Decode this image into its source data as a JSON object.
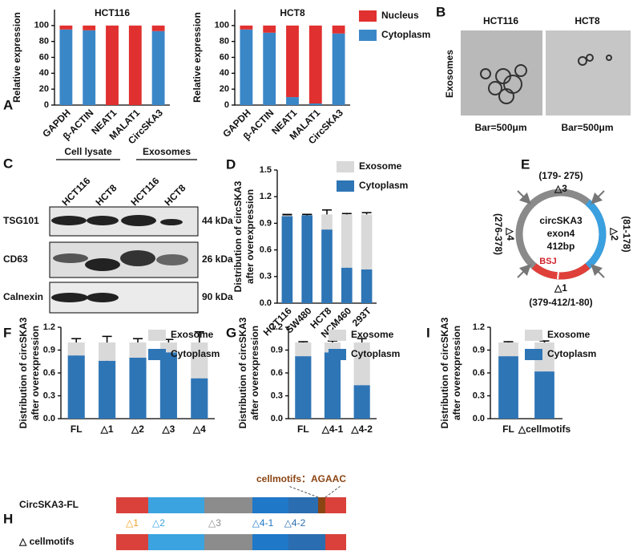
{
  "chart_data": [
    {
      "type": "bar",
      "stacked": true,
      "panel_label": "A",
      "title": "HCT116",
      "ylabel": "Relative expression",
      "categories": [
        "GAPDH",
        "β-ACTIN",
        "NEAT1",
        "MALAT1",
        "CircSKA3"
      ],
      "series": [
        {
          "name": "Cytoplasm",
          "color": "#3a87c8",
          "values": [
            95,
            94,
            0,
            0,
            93
          ]
        },
        {
          "name": "Nucleus",
          "color": "#e0302f",
          "values": [
            5,
            6,
            100,
            100,
            7
          ]
        }
      ],
      "ylim": [
        0,
        120
      ],
      "yticks": [
        0,
        20,
        40,
        60,
        80,
        100
      ]
    },
    {
      "type": "bar",
      "stacked": true,
      "title": "HCT8",
      "ylabel": "Relative expression",
      "categories": [
        "GAPDH",
        "β-ACTIN",
        "NEAT1",
        "MALAT1",
        "CircSKA3"
      ],
      "series": [
        {
          "name": "Cytoplasm",
          "color": "#3a87c8",
          "values": [
            95,
            91,
            10,
            2,
            90
          ]
        },
        {
          "name": "Nucleus",
          "color": "#e0302f",
          "values": [
            5,
            9,
            90,
            98,
            10
          ]
        }
      ],
      "ylim": [
        0,
        120
      ],
      "yticks": [
        0,
        20,
        40,
        60,
        80,
        100
      ],
      "legend": "right"
    },
    {
      "type": "bar",
      "stacked": true,
      "panel_label": "D",
      "ylabel": [
        "Distribution of circSKA3",
        "after overexpression"
      ],
      "categories": [
        "HCT116",
        "SW480",
        "HCT8",
        "NCM460",
        "293T"
      ],
      "series": [
        {
          "name": "Cytoplasm",
          "color": "#2e75b6",
          "values": [
            0.98,
            0.99,
            0.83,
            0.4,
            0.38
          ],
          "errors": [
            0.01,
            0.01,
            0.04,
            0.01,
            0.02
          ]
        },
        {
          "name": "Exosome",
          "color": "#d9d9d9",
          "values": [
            0.01,
            0.0,
            0.17,
            0.6,
            0.62
          ],
          "errors": [
            0.01,
            0.01,
            0.05,
            0.01,
            0.02
          ]
        }
      ],
      "ylim": [
        0,
        1.5
      ],
      "yticks": [
        {
          "value": 0,
          "label": "0.0"
        },
        0.3,
        0.6,
        0.9,
        1.2,
        1.5
      ],
      "legend": "upper right"
    },
    {
      "type": "bar",
      "stacked": true,
      "panel_label": "F",
      "ylabel": [
        "Distribution of circSKA3",
        "after overexpression"
      ],
      "categories": [
        "FL",
        "△1",
        "△2",
        "△3",
        "△4"
      ],
      "series": [
        {
          "name": "Cytoplasm",
          "color": "#2e75b6",
          "values": [
            0.83,
            0.76,
            0.8,
            0.87,
            0.53
          ],
          "errors": [
            0.04,
            0.08,
            0.06,
            0.04,
            0.14
          ]
        },
        {
          "name": "Exosome",
          "color": "#d9d9d9",
          "values": [
            0.17,
            0.24,
            0.2,
            0.13,
            0.47
          ],
          "errors": [
            0.05,
            0.08,
            0.05,
            0.04,
            0.14
          ]
        }
      ],
      "ylim": [
        0,
        1.2
      ],
      "yticks": [
        {
          "value": 0,
          "label": "0.0"
        },
        0.3,
        0.6,
        0.9,
        1.2
      ],
      "legend": "upper right"
    },
    {
      "type": "bar",
      "stacked": true,
      "panel_label": "G",
      "ylabel": [
        "Distribution of circSKA3",
        "after overexpression"
      ],
      "categories": [
        "FL",
        "△4-1",
        "△4-2"
      ],
      "series": [
        {
          "name": "Cytoplasm",
          "color": "#2e75b6",
          "values": [
            0.82,
            0.87,
            0.44
          ],
          "errors": [
            0.01,
            0.02,
            0.05
          ]
        },
        {
          "name": "Exosome",
          "color": "#d9d9d9",
          "values": [
            0.18,
            0.13,
            0.56
          ],
          "errors": [
            0.01,
            0.02,
            0.05
          ]
        }
      ],
      "ylim": [
        0,
        1.2
      ],
      "yticks": [
        {
          "value": 0,
          "label": "0.0"
        },
        0.3,
        0.6,
        0.9,
        1.2
      ],
      "legend": "upper right"
    },
    {
      "type": "bar",
      "stacked": true,
      "panel_label": "I",
      "ylabel": [
        "Distribution of circSKA3",
        "after overexpression"
      ],
      "categories": [
        "FL",
        "△cellmotifs"
      ],
      "series": [
        {
          "name": "Cytoplasm",
          "color": "#2e75b6",
          "values": [
            0.82,
            0.62
          ],
          "errors": [
            0.01,
            0.02
          ]
        },
        {
          "name": "Exosome",
          "color": "#d9d9d9",
          "values": [
            0.18,
            0.38
          ],
          "errors": [
            0.01,
            0.02
          ]
        }
      ],
      "ylim": [
        0,
        1.2
      ],
      "yticks": [
        {
          "value": 0,
          "label": "0.0"
        },
        0.3,
        0.6,
        0.9,
        1.2
      ],
      "legend": "upper right"
    }
  ],
  "panels": {
    "B": {
      "label": "B",
      "titles": [
        "HCT116",
        "HCT8"
      ],
      "row_label": "Exosomes",
      "scale_bars": [
        "Bar=500μm",
        "Bar=500μm"
      ]
    },
    "C": {
      "label": "C",
      "groups": [
        "Cell lysate",
        "Exosomes"
      ],
      "lanes": [
        "HCT116",
        "HCT8",
        "HCT116",
        "HCT8"
      ],
      "rows": [
        {
          "name": "TSG101",
          "size": "44 kDa"
        },
        {
          "name": "CD63",
          "size": "26 kDa"
        },
        {
          "name": "Calnexin",
          "size": "90 kDa"
        }
      ]
    },
    "E": {
      "label": "E",
      "center": [
        "circSKA3",
        "exon4",
        "412bp"
      ],
      "bsj": "BSJ",
      "segments": [
        {
          "name": "△1",
          "range": "(379-412/1-80)"
        },
        {
          "name": "△2",
          "range": "(81-178)"
        },
        {
          "name": "△3",
          "range": "(179- 275)"
        },
        {
          "name": "△4",
          "range": "(276-378)"
        }
      ]
    },
    "H": {
      "label": "H",
      "rows": [
        "CircSKA3-FL",
        "△ cellmotifs"
      ],
      "motif": "cellmotifs：AGAAC",
      "segments": [
        "△1",
        "△2",
        "△3",
        "△4-1",
        "△4-2"
      ]
    }
  }
}
